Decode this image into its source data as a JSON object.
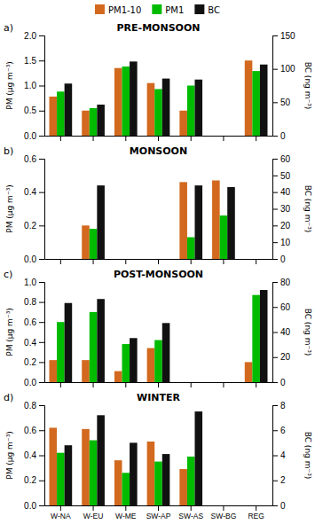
{
  "chart_data": [
    {
      "type": "bar",
      "title": "PRE-MONSOON",
      "categories": [
        "W-NA",
        "W-EU",
        "W-ME",
        "SW-AP",
        "SW-AS",
        "SW-BG",
        "REG"
      ],
      "series": [
        {
          "name": "PM1-10",
          "color": "#D2691E",
          "values": [
            0.78,
            0.5,
            1.35,
            1.05,
            0.5,
            null,
            1.5
          ]
        },
        {
          "name": "PM1",
          "color": "#00BB00",
          "values": [
            0.88,
            0.55,
            1.38,
            0.93,
            1.0,
            null,
            1.29
          ]
        },
        {
          "name": "BC",
          "color": "#111111",
          "values": [
            1.04,
            0.62,
            1.48,
            1.14,
            1.12,
            null,
            1.42
          ]
        }
      ],
      "y_label": "PM (μg m⁻³)",
      "y2_label": "BC (ng m⁻³)",
      "ylim": [
        0.0,
        2.0
      ],
      "yticks": [
        {
          "value": 0,
          "label": "0.0"
        },
        0.5,
        {
          "value": 1,
          "label": "1.0"
        },
        1.5,
        {
          "value": 2,
          "label": "2.0"
        }
      ],
      "y2lim": [
        0,
        150
      ],
      "y2ticks": [
        0,
        50,
        100,
        150
      ],
      "annotations": [
        {
          "text": "a)"
        }
      ],
      "legend": "top",
      "tick_labels": "y"
    },
    {
      "type": "bar",
      "title": "MONSOON",
      "categories": [
        "W-NA",
        "W-EU",
        "W-ME",
        "SW-AP",
        "SW-AS",
        "SW-BG",
        "REG"
      ],
      "series": [
        {
          "name": "PM1-10",
          "color": "#D2691E",
          "values": [
            null,
            0.2,
            null,
            null,
            0.46,
            0.47,
            null
          ]
        },
        {
          "name": "PM1",
          "color": "#00BB00",
          "values": [
            null,
            0.18,
            null,
            null,
            0.13,
            0.26,
            null
          ]
        },
        {
          "name": "BC",
          "color": "#111111",
          "values": [
            null,
            0.44,
            null,
            null,
            0.44,
            0.43,
            null
          ]
        }
      ],
      "y_label": "PM (μg m⁻³)",
      "y2_label": "BC (ng m⁻³)",
      "ylim": [
        0.0,
        0.6
      ],
      "yticks": [
        {
          "value": 0,
          "label": "0.0"
        },
        0.2,
        0.4,
        0.6
      ],
      "y2lim": [
        0,
        60
      ],
      "y2ticks": [
        0,
        10,
        20,
        30,
        40,
        50,
        60
      ],
      "annotations": [
        {
          "text": "b)"
        }
      ],
      "tick_labels": "y"
    },
    {
      "type": "bar",
      "title": "POST-MONSOON",
      "categories": [
        "W-NA",
        "W-EU",
        "W-ME",
        "SW-AP",
        "SW-AS",
        "SW-BG",
        "REG"
      ],
      "series": [
        {
          "name": "PM1-10",
          "color": "#D2691E",
          "values": [
            0.22,
            0.22,
            0.11,
            0.34,
            null,
            null,
            0.2
          ]
        },
        {
          "name": "PM1",
          "color": "#00BB00",
          "values": [
            0.6,
            0.7,
            0.38,
            0.42,
            null,
            null,
            0.87
          ]
        },
        {
          "name": "BC",
          "color": "#111111",
          "values": [
            0.79,
            0.83,
            0.44,
            0.59,
            null,
            null,
            0.92
          ]
        }
      ],
      "y_label": "PM (μg m⁻³)",
      "y2_label": "BC (ng m⁻³)",
      "ylim": [
        0.0,
        1.0
      ],
      "yticks": [
        {
          "value": 0,
          "label": "0.0"
        },
        0.2,
        0.4,
        0.6,
        0.8,
        {
          "value": 1,
          "label": "1.0"
        }
      ],
      "y2lim": [
        0,
        80
      ],
      "y2ticks": [
        0,
        20,
        40,
        60,
        80
      ],
      "annotations": [
        {
          "text": "c)"
        }
      ],
      "tick_labels": "y"
    },
    {
      "type": "bar",
      "title": "WINTER",
      "categories": [
        "W-NA",
        "W-EU",
        "W-ME",
        "SW-AP",
        "SW-AS",
        "SW-BG",
        "REG"
      ],
      "series": [
        {
          "name": "PM1-10",
          "color": "#D2691E",
          "values": [
            0.62,
            0.61,
            0.36,
            0.51,
            0.29,
            null,
            null
          ]
        },
        {
          "name": "PM1",
          "color": "#00BB00",
          "values": [
            0.42,
            0.52,
            0.26,
            0.35,
            0.39,
            null,
            null
          ]
        },
        {
          "name": "BC",
          "color": "#111111",
          "values": [
            0.48,
            0.72,
            0.5,
            0.41,
            0.75,
            null,
            null
          ]
        }
      ],
      "y_label": "PM (μg m⁻³)",
      "y2_label": "BC (ng m⁻³)",
      "ylim": [
        0.0,
        0.8
      ],
      "yticks": [
        {
          "value": 0,
          "label": "0.0"
        },
        0.2,
        0.4,
        0.6,
        0.8
      ],
      "y2lim": [
        0,
        8
      ],
      "y2ticks": [
        0,
        2,
        4,
        6,
        8
      ],
      "annotations": [
        {
          "text": "d)"
        }
      ]
    }
  ]
}
